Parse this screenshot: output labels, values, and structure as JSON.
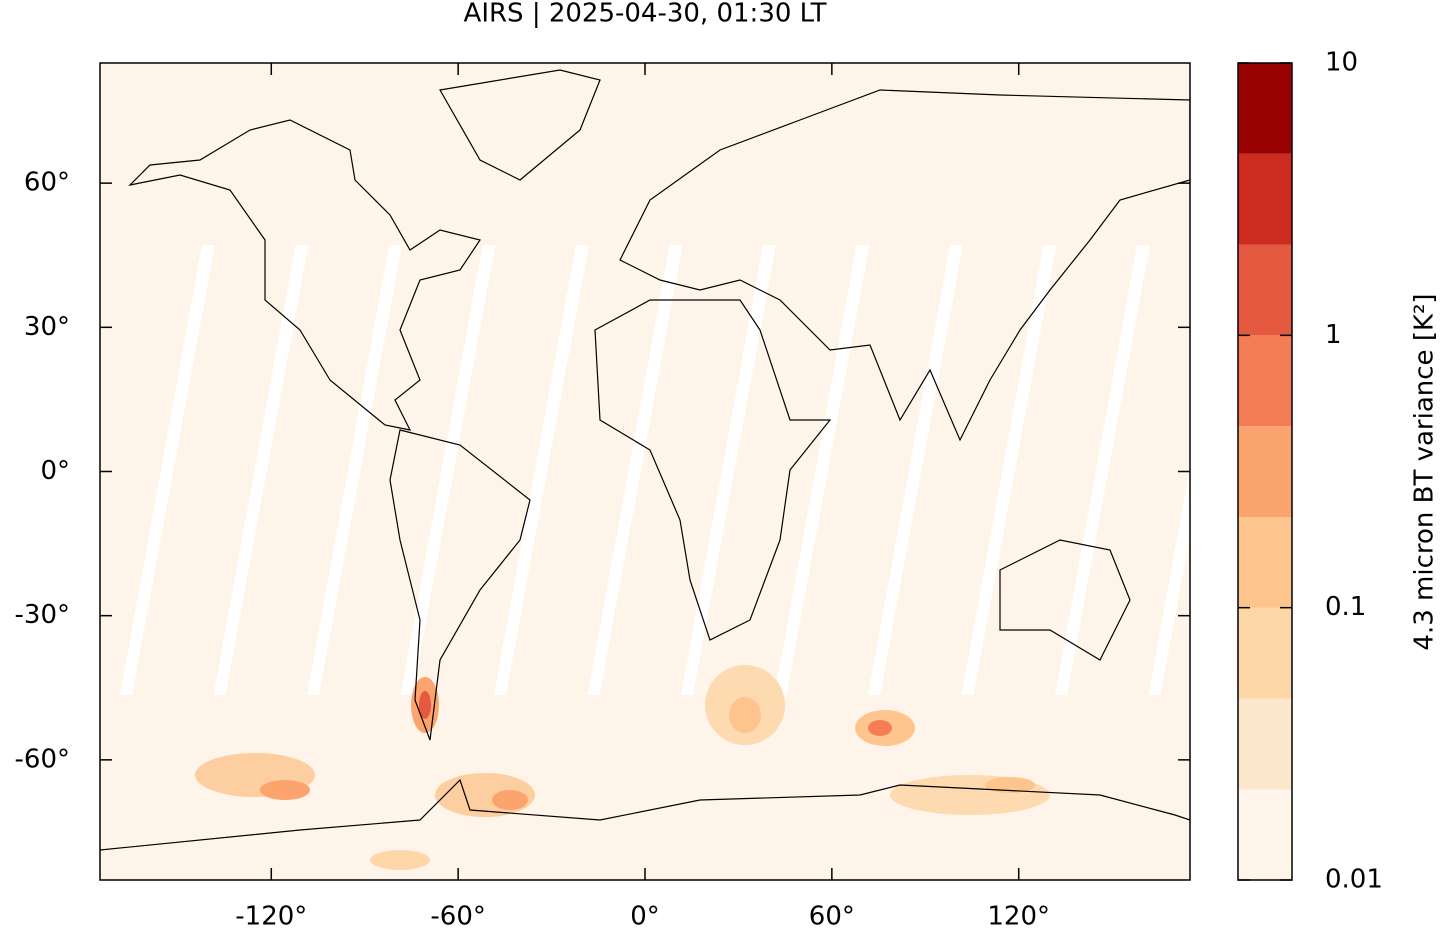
{
  "chart_data": {
    "type": "map",
    "title": "AIRS | 2025-04-30, 01:30 LT",
    "xlim": [
      -175,
      175
    ],
    "ylim": [
      -85,
      85
    ],
    "xticks": [
      {
        "value": -120,
        "label": "-120°"
      },
      {
        "value": -60,
        "label": "-60°"
      },
      {
        "value": 0,
        "label": "0°"
      },
      {
        "value": 60,
        "label": "60°"
      },
      {
        "value": 120,
        "label": "120°"
      }
    ],
    "yticks": [
      {
        "value": -60,
        "label": "-60°"
      },
      {
        "value": -30,
        "label": "-30°"
      },
      {
        "value": 0,
        "label": "0°"
      },
      {
        "value": 30,
        "label": "30°"
      },
      {
        "value": 60,
        "label": "60°"
      }
    ],
    "colorbar": {
      "label": "4.3 micron BT variance [K²]",
      "scale": "log",
      "lim": [
        0.01,
        10
      ],
      "ticks": [
        0.01,
        0.1,
        1,
        10
      ],
      "levels": [
        0.01,
        0.0215,
        0.0464,
        0.1,
        0.215,
        0.464,
        1,
        2.15,
        4.64,
        10
      ],
      "colors": [
        "#fff4e9",
        "#fde7cc",
        "#fdd7a8",
        "#fdc48d",
        "#fca46e",
        "#f47d56",
        "#e45940",
        "#cb2c1f",
        "#990000"
      ]
    }
  }
}
